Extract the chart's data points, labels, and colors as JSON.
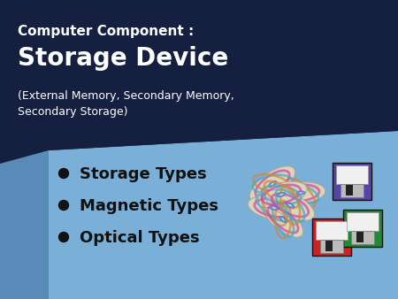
{
  "bg_dark": "#152040",
  "bg_light": "#7ab0d8",
  "bg_side": "#5a8ab8",
  "title_line1": "Computer Component :",
  "title_line2": "Storage Device",
  "subtitle": "(External Memory, Secondary Memory,\nSecondary Storage)",
  "bullet_items": [
    "Storage Types",
    "Magnetic Types",
    "Optical Types"
  ],
  "title_color": "#ffffff",
  "bullet_color": "#111111",
  "subtitle_color": "#ffffff",
  "title1_fontsize": 11,
  "title2_fontsize": 20,
  "subtitle_fontsize": 9,
  "bullet_fontsize": 13
}
